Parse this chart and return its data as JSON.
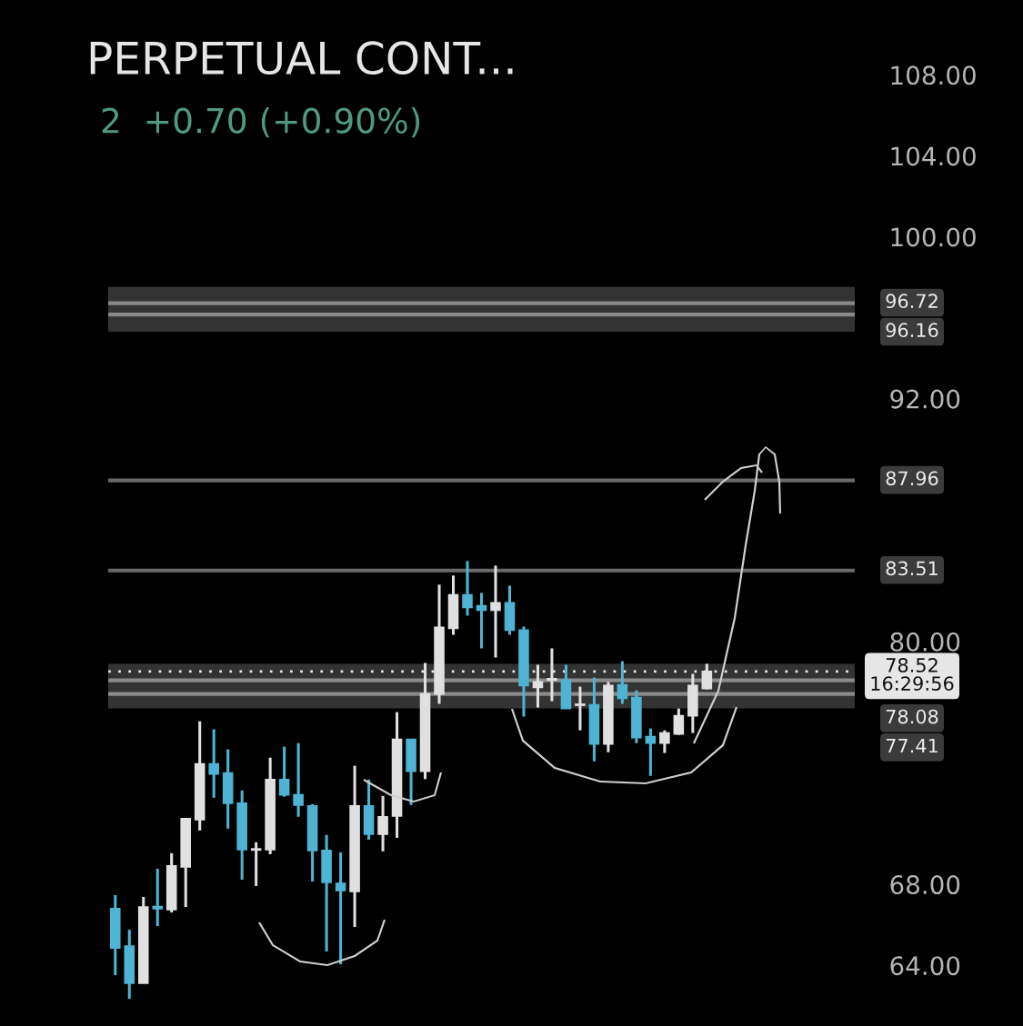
{
  "chart_data": {
    "type": "candlestick",
    "title": "PERPETUAL CONT...",
    "annotations": [
      "2  +0.70 (+0.90%)"
    ],
    "categories": [
      null,
      null,
      null,
      null,
      null,
      null,
      null,
      null,
      null,
      null,
      null,
      null,
      null,
      null,
      null,
      null,
      null,
      null,
      null,
      null,
      null,
      null,
      null,
      null,
      null,
      null,
      null,
      null,
      null,
      null,
      null,
      null,
      null,
      null,
      null,
      null,
      null,
      null,
      null,
      null,
      null,
      null,
      null,
      null,
      null,
      null,
      null,
      null,
      null,
      null,
      null,
      null,
      null
    ],
    "ohlc": [
      [
        66.8,
        67.47,
        63.51,
        64.86
      ],
      [
        64.95,
        65.76,
        62.34,
        63.11
      ],
      [
        63.11,
        67.38,
        63.11,
        66.88
      ],
      [
        66.9,
        68.77,
        65.94,
        66.8
      ],
      [
        66.75,
        69.54,
        66.61,
        68.91
      ],
      [
        68.86,
        71.25,
        66.88,
        71.25
      ],
      [
        71.2,
        76.06,
        70.66,
        73.95
      ],
      [
        73.95,
        75.66,
        72.28,
        73.45
      ],
      [
        73.5,
        74.67,
        70.75,
        72.01
      ],
      [
        72.01,
        72.64,
        68.23,
        69.72
      ],
      [
        69.7,
        70.08,
        67.92,
        69.75
      ],
      [
        69.72,
        74.26,
        69.49,
        73.18
      ],
      [
        73.18,
        74.8,
        72.33,
        72.42
      ],
      [
        72.42,
        74.98,
        71.34,
        71.92
      ],
      [
        71.88,
        71.97,
        68.14,
        69.67
      ],
      [
        69.67,
        70.44,
        64.68,
        68.1
      ],
      [
        68.05,
        69.58,
        64.05,
        67.69
      ],
      [
        67.65,
        73.86,
        65.89,
        71.88
      ],
      [
        71.88,
        73.18,
        70.21,
        70.48
      ],
      [
        70.48,
        72.37,
        69.63,
        71.34
      ],
      [
        71.38,
        76.51,
        70.3,
        75.16
      ],
      [
        75.16,
        75.16,
        71.92,
        73.59
      ],
      [
        73.59,
        78.94,
        73.2,
        77.41
      ],
      [
        77.41,
        82.81,
        76.92,
        80.7
      ],
      [
        80.65,
        83.26,
        80.33,
        82.31
      ],
      [
        82.31,
        83.98,
        81.28,
        81.68
      ],
      [
        81.77,
        82.4,
        79.66,
        81.55
      ],
      [
        81.55,
        83.75,
        79.21,
        81.91
      ],
      [
        81.91,
        82.76,
        80.33,
        80.56
      ],
      [
        80.56,
        80.74,
        76.29,
        77.82
      ],
      [
        77.73,
        78.85,
        76.74,
        78.0
      ],
      [
        78.1,
        79.66,
        77.05,
        78.16
      ],
      [
        78.09,
        78.85,
        76.69,
        76.69
      ],
      [
        76.85,
        77.77,
        75.61,
        76.9
      ],
      [
        76.87,
        78.22,
        74.08,
        74.94
      ],
      [
        74.94,
        78.0,
        74.53,
        77.82
      ],
      [
        77.86,
        79.03,
        76.92,
        77.19
      ],
      [
        77.23,
        77.59,
        74.98,
        75.25
      ],
      [
        75.3,
        75.7,
        73.36,
        74.98
      ],
      [
        74.98,
        75.61,
        74.49,
        75.48
      ],
      [
        75.43,
        76.69,
        75.39,
        76.33
      ],
      [
        76.33,
        78.4,
        75.48,
        77.82
      ],
      [
        77.68,
        78.9,
        77.63,
        78.52
      ],
      null,
      null,
      null,
      null,
      null,
      null,
      null,
      null,
      null,
      null
    ],
    "colors": [
      "#4fb3d3",
      "#4fb3d3",
      "#e0e0e0",
      "#4fb3d3",
      "#e0e0e0",
      "#e0e0e0",
      "#e0e0e0",
      "#4fb3d3",
      "#4fb3d3",
      "#4fb3d3",
      "#e0e0e0",
      "#e0e0e0",
      "#4fb3d3",
      "#4fb3d3",
      "#4fb3d3",
      "#4fb3d3",
      "#4fb3d3",
      "#e0e0e0",
      "#4fb3d3",
      "#e0e0e0",
      "#e0e0e0",
      "#4fb3d3",
      "#e0e0e0",
      "#e0e0e0",
      "#e0e0e0",
      "#4fb3d3",
      "#4fb3d3",
      "#e0e0e0",
      "#4fb3d3",
      "#4fb3d3",
      "#e0e0e0",
      "#e0e0e0",
      "#4fb3d3",
      "#e0e0e0",
      "#4fb3d3",
      "#e0e0e0",
      "#4fb3d3",
      "#4fb3d3",
      "#4fb3d3",
      "#e0e0e0",
      "#e0e0e0",
      "#e0e0e0",
      "#e0e0e0",
      null,
      null,
      null,
      null,
      null,
      null,
      null,
      null,
      null,
      null
    ],
    "ylim": [
      61.0,
      111.7
    ],
    "yticks": [
      {
        "value": 64,
        "label": "64.00"
      },
      {
        "value": 68,
        "label": "68.00"
      },
      {
        "value": 80,
        "label": "80.00"
      },
      {
        "value": 92,
        "label": "92.00"
      },
      {
        "value": 100,
        "label": "100.00"
      },
      {
        "value": 104,
        "label": "104.00"
      },
      {
        "value": 108,
        "label": "108.00"
      }
    ],
    "tick_labels": "y",
    "grid": false,
    "bands": [
      {
        "axis": "y",
        "from": 95.31,
        "to": 97.52,
        "color": "#333333"
      },
      {
        "axis": "y",
        "from": 76.69,
        "to": 78.9,
        "color": "#333333"
      }
    ],
    "ref_lines": [
      {
        "axis": "y",
        "value": 96.72,
        "label": "96.72",
        "color": "#8a8a8a",
        "line_style": "solid"
      },
      {
        "axis": "y",
        "value": 96.16,
        "label": "96.16",
        "color": "#8a8a8a",
        "line_style": "solid"
      },
      {
        "axis": "y",
        "value": 87.96,
        "label": "87.96",
        "color": "#6a6a6a",
        "line_style": "solid"
      },
      {
        "axis": "y",
        "value": 83.51,
        "label": "83.51",
        "color": "#6a6a6a",
        "line_style": "solid"
      },
      {
        "axis": "y",
        "value": 78.52,
        "label": "78.52\n16:29:56",
        "color": "#e6e6e6",
        "line_style": "dotted"
      },
      {
        "axis": "y",
        "value": 78.08,
        "label": "78.08",
        "color": "#8a8a8a",
        "line_style": "solid"
      },
      {
        "axis": "y",
        "value": 77.41,
        "label": "77.41",
        "color": "#8a8a8a",
        "line_style": "solid"
      }
    ]
  }
}
